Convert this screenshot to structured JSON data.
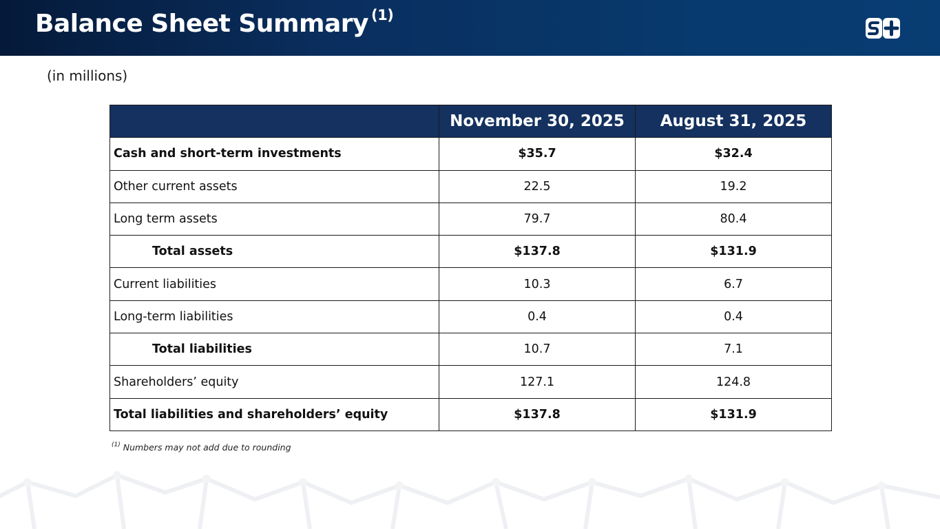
{
  "header": {
    "title": "Balance Sheet Summary",
    "title_footnote_marker": "(1)",
    "logo_text": "S+"
  },
  "units_note": "(in millions)",
  "table": {
    "columns": [
      "",
      "November 30, 2025",
      "August 31, 2025"
    ],
    "rows": [
      {
        "label": "Cash and short-term investments",
        "nov": "$35.7",
        "aug": "$32.4"
      },
      {
        "label": "Other current assets",
        "nov": "22.5",
        "aug": "19.2"
      },
      {
        "label": "Long term assets",
        "nov": "79.7",
        "aug": "80.4"
      },
      {
        "label": "Total assets",
        "nov": "$137.8",
        "aug": "$131.9"
      },
      {
        "label": "Current liabilities",
        "nov": "10.3",
        "aug": "6.7"
      },
      {
        "label": "Long-term liabilities",
        "nov": "0.4",
        "aug": "0.4"
      },
      {
        "label": "Total liabilities",
        "nov": "10.7",
        "aug": "7.1"
      },
      {
        "label": "Shareholders’ equity",
        "nov": "127.1",
        "aug": "124.8"
      },
      {
        "label": "Total liabilities and shareholders’ equity",
        "nov": "$137.8",
        "aug": "$131.9"
      }
    ]
  },
  "footnote": {
    "marker": "(1)",
    "text": "Numbers may not add due to rounding"
  },
  "colors": {
    "header_bg": "#0a2e5e",
    "table_header_bg": "#14315f",
    "border": "#1b1b1b"
  }
}
